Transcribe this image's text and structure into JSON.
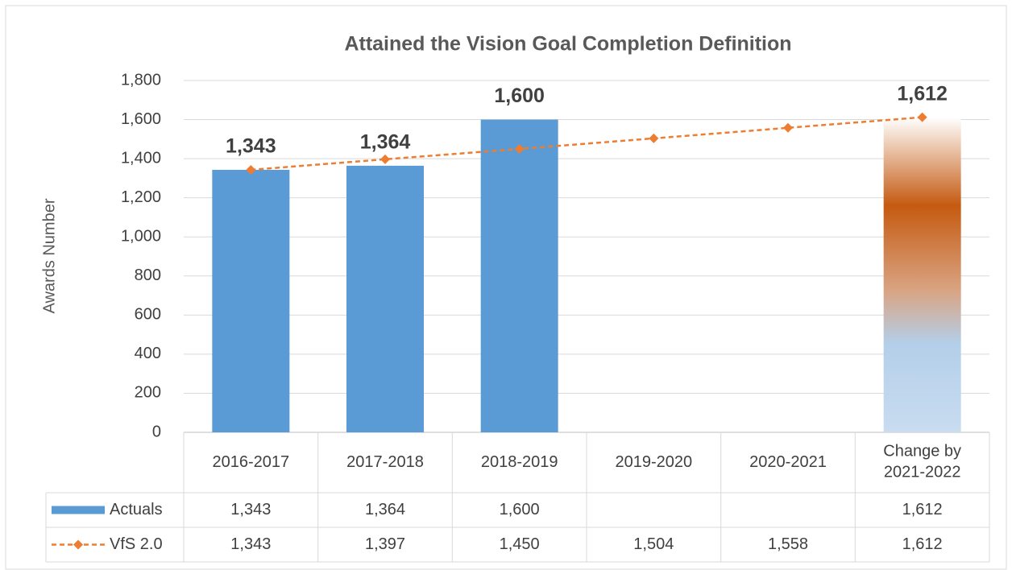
{
  "chart_data": {
    "type": "bar",
    "title": "Attained the Vision Goal Completion Definition",
    "y_axis_label": "Awards Number",
    "categories": [
      "2016-2017",
      "2017-2018",
      "2018-2019",
      "2019-2020",
      "2020-2021",
      "Change by 2021-2022"
    ],
    "series": [
      {
        "name": "Actuals",
        "type": "bar",
        "color": "#5b9bd5",
        "values": [
          1343,
          1364,
          1600,
          null,
          null,
          1612
        ],
        "value_labels": [
          "1,343",
          "1,364",
          "1,600",
          null,
          null,
          "1,612"
        ]
      },
      {
        "name": "VfS 2.0",
        "type": "line",
        "color": "#ed7d31",
        "dashed": true,
        "values": [
          1343,
          1397,
          1450,
          1504,
          1558,
          1612
        ],
        "value_labels": [
          "1,343",
          "1,397",
          "1,450",
          "1,504",
          "1,558",
          "1,612"
        ]
      }
    ],
    "ylim": [
      0,
      1800
    ],
    "yticks": [
      0,
      200,
      400,
      600,
      800,
      {
        "value": 1000,
        "label": "1,000"
      },
      {
        "value": 1200,
        "label": "1,200"
      },
      {
        "value": 1400,
        "label": "1,400"
      },
      {
        "value": 1600,
        "label": "1,600"
      },
      {
        "value": 1800,
        "label": "1,800"
      }
    ],
    "grid": true,
    "data_table": true
  }
}
